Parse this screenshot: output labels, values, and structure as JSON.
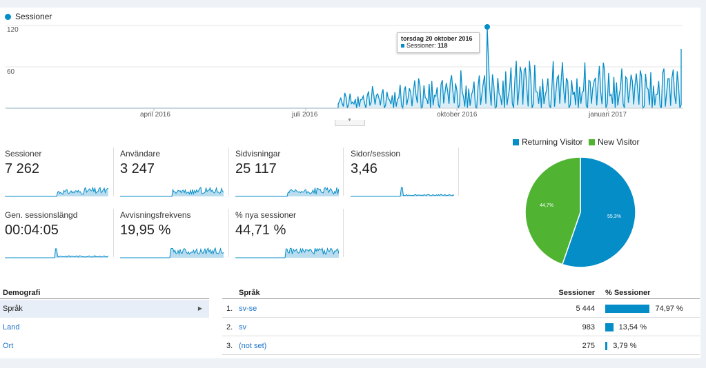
{
  "chart": {
    "legend_label": "Sessioner",
    "y_ticks": [
      "120",
      "60"
    ],
    "x_ticks": [
      "april 2016",
      "juli 2016",
      "oktober 2016",
      "januari 2017"
    ],
    "tooltip": {
      "date": "torsdag 20 oktober 2016",
      "series": "Sessioner:",
      "value": "118"
    },
    "color": "#058dc7"
  },
  "chart_data": {
    "type": "area",
    "title": "",
    "series": [
      {
        "name": "Sessioner",
        "x_start": "2016-01",
        "peak": {
          "x": "torsdag 20 oktober 2016",
          "y": 118
        }
      }
    ],
    "x_ticks": [
      "april 2016",
      "juli 2016",
      "oktober 2016",
      "januari 2017"
    ],
    "ylim": [
      0,
      120
    ],
    "y_ticks": [
      60,
      120
    ]
  },
  "metrics": [
    {
      "label": "Sessioner",
      "value": "7 262"
    },
    {
      "label": "Användare",
      "value": "3 247"
    },
    {
      "label": "Sidvisningar",
      "value": "25 117"
    },
    {
      "label": "Sidor/session",
      "value": "3,46"
    },
    {
      "label": "Gen. sessionslängd",
      "value": "00:04:05"
    },
    {
      "label": "Avvisningsfrekvens",
      "value": "19,95 %"
    },
    {
      "label": "% nya sessioner",
      "value": "44,71 %"
    }
  ],
  "pie": {
    "legend": [
      {
        "label": "Returning Visitor",
        "color": "#058dc7"
      },
      {
        "label": "New Visitor",
        "color": "#50b432"
      }
    ],
    "slices": [
      {
        "label": "55,3%",
        "value": 55.3,
        "color": "#058dc7"
      },
      {
        "label": "44,7%",
        "value": 44.7,
        "color": "#50b432"
      }
    ]
  },
  "demographics": {
    "heading": "Demografi",
    "items": [
      {
        "label": "Språk",
        "selected": true
      },
      {
        "label": "Land",
        "selected": false
      },
      {
        "label": "Ort",
        "selected": false
      }
    ]
  },
  "table": {
    "headers": {
      "language": "Språk",
      "sessions": "Sessioner",
      "percent": "% Sessioner"
    },
    "rows": [
      {
        "num": "1.",
        "lang": "sv-se",
        "sessions": "5 444",
        "pct": "74,97 %",
        "share": 74.97
      },
      {
        "num": "2.",
        "lang": "sv",
        "sessions": "983",
        "pct": "13,54 %",
        "share": 13.54
      },
      {
        "num": "3.",
        "lang": "(not set)",
        "sessions": "275",
        "pct": "3,79 %",
        "share": 3.79
      }
    ]
  }
}
